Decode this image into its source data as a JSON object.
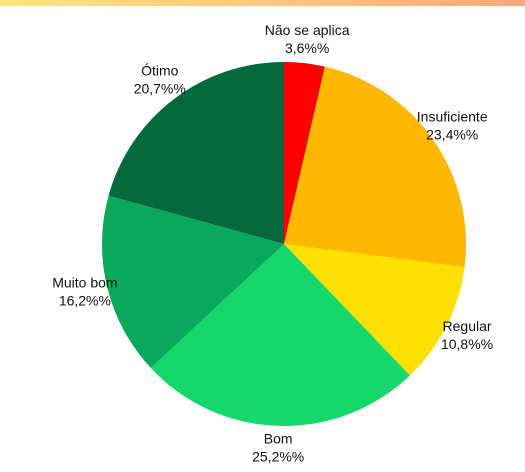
{
  "chart_data": {
    "type": "pie",
    "categories": [
      "Não se aplica",
      "Insuficiente",
      "Regular",
      "Bom",
      "Muito bom",
      "Ótimo"
    ],
    "values": [
      3.6,
      23.4,
      10.8,
      25.2,
      16.2,
      20.7
    ],
    "value_labels": [
      "3,6%%",
      "23,4%%",
      "10,8%%",
      "25,2%%",
      "16,2%%",
      "20,7%%"
    ],
    "colors": [
      "#ff0000",
      "#ffb800",
      "#ffe000",
      "#14d86c",
      "#0aa85a",
      "#046a3e"
    ]
  }
}
